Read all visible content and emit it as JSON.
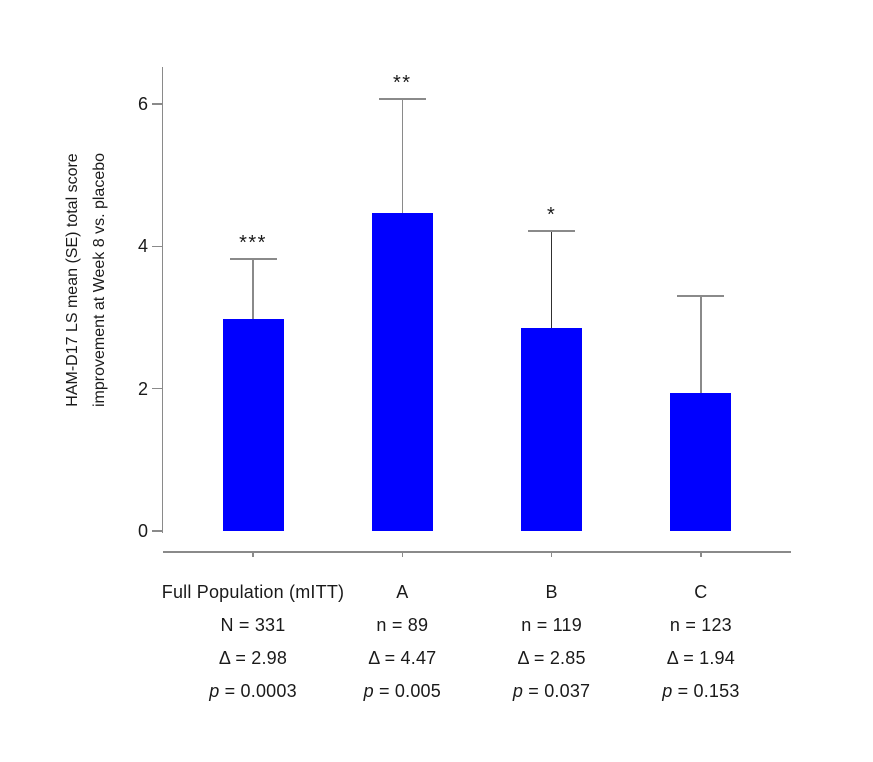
{
  "y_axis": {
    "label_lines": [
      "HAM-D17 LS mean (SE) total score",
      "improvement at Week 8 vs. placebo"
    ],
    "tick_labels": [
      "0",
      "2",
      "4",
      "6"
    ]
  },
  "chart_data": {
    "type": "bar",
    "title": "",
    "xlabel": "",
    "ylabel": "HAM-D17 LS mean (SE) total score improvement at Week 8 vs. placebo",
    "ylim": [
      0,
      6.5
    ],
    "yticks": [
      0,
      2,
      4,
      6
    ],
    "grid": false,
    "legend": "none",
    "bar_color": "#0000ff",
    "axis_color": "#8a8a8a",
    "error_cap_color": "#8a8a8a",
    "error_line_colors": [
      "#8a8a8a",
      "#8a8a8a",
      "#303030",
      "#8a8a8a"
    ],
    "categories": [
      "Full Population (mITT)",
      "A",
      "B",
      "C"
    ],
    "values": [
      2.98,
      4.47,
      2.85,
      1.94
    ],
    "se_upper": [
      0.84,
      1.6,
      1.37,
      1.36
    ],
    "significance": [
      "***",
      "**",
      "*",
      ""
    ],
    "columns": [
      {
        "label": "Full Population (mITT)",
        "n_label": "N = 331",
        "delta_label": "Δ = 2.98",
        "p_label": "p",
        "p_rest": " = 0.0003"
      },
      {
        "label": "A",
        "n_label": "n = 89",
        "delta_label": "Δ = 4.47",
        "p_label": "p",
        "p_rest": " = 0.005"
      },
      {
        "label": "B",
        "n_label": "n = 119",
        "delta_label": "Δ = 2.85",
        "p_label": "p",
        "p_rest": " = 0.037"
      },
      {
        "label": "C",
        "n_label": "n = 123",
        "delta_label": "Δ = 1.94",
        "p_label": "p",
        "p_rest": " = 0.153"
      }
    ]
  }
}
